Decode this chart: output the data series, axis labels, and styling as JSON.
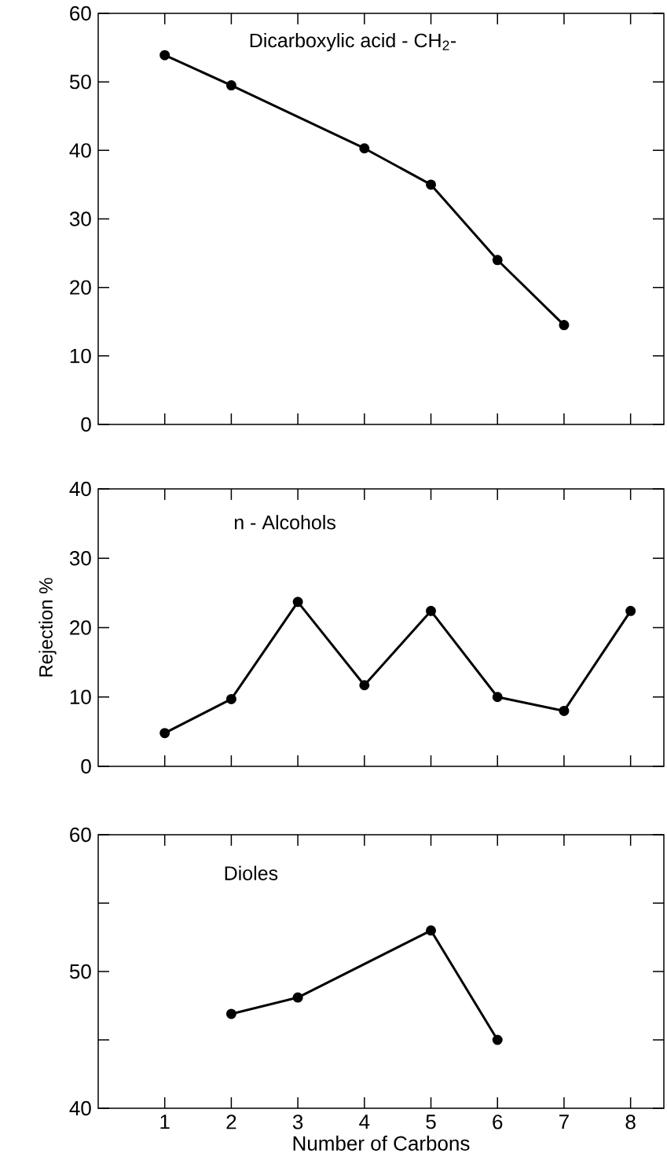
{
  "chart_data": [
    {
      "type": "line",
      "title": "Dicarboxylic acid - CH$_{2}$-",
      "marker": "circle",
      "line_style": "solid",
      "tick_labels": "y",
      "x": [
        1,
        2,
        4,
        5,
        6,
        7
      ],
      "series": [
        {
          "color": "#000000",
          "values": [
            53.9,
            49.5,
            40.3,
            35,
            24,
            14.5
          ]
        }
      ],
      "xlim": [
        0,
        8.5
      ],
      "xticks": [
        1,
        2,
        3,
        4,
        5,
        6,
        7,
        8
      ],
      "ylim": [
        0,
        60
      ],
      "yticks": [
        0,
        10,
        20,
        30,
        40,
        50,
        60
      ]
    },
    {
      "type": "line",
      "title": "n - Alcohols",
      "ylabel": "Rejection %",
      "marker": "circle",
      "line_style": "solid",
      "tick_labels": "y",
      "x": [
        1,
        2,
        3,
        4,
        5,
        6,
        7,
        8
      ],
      "series": [
        {
          "color": "#000000",
          "values": [
            4.8,
            9.7,
            23.7,
            11.7,
            22.4,
            10,
            8,
            22.4
          ]
        }
      ],
      "xlim": [
        0,
        8.5
      ],
      "xticks": [
        1,
        2,
        3,
        4,
        5,
        6,
        7,
        8
      ],
      "ylim": [
        0,
        40
      ],
      "yticks": [
        0,
        10,
        20,
        30,
        40
      ]
    },
    {
      "type": "line",
      "title": "Dioles",
      "xlabel": "Number of Carbons",
      "marker": "circle",
      "line_style": "solid",
      "x": [
        2,
        3,
        5,
        6
      ],
      "series": [
        {
          "color": "#000000",
          "values": [
            46.9,
            48.1,
            53,
            45
          ]
        }
      ],
      "xlim": [
        0,
        8.5
      ],
      "xticks": [
        1,
        2,
        3,
        4,
        5,
        6,
        7,
        8
      ],
      "ylim": [
        40,
        60
      ],
      "yticks": [
        40,
        {
          "value": 45,
          "label": null
        },
        50,
        {
          "value": 55,
          "label": null
        },
        60
      ]
    }
  ]
}
